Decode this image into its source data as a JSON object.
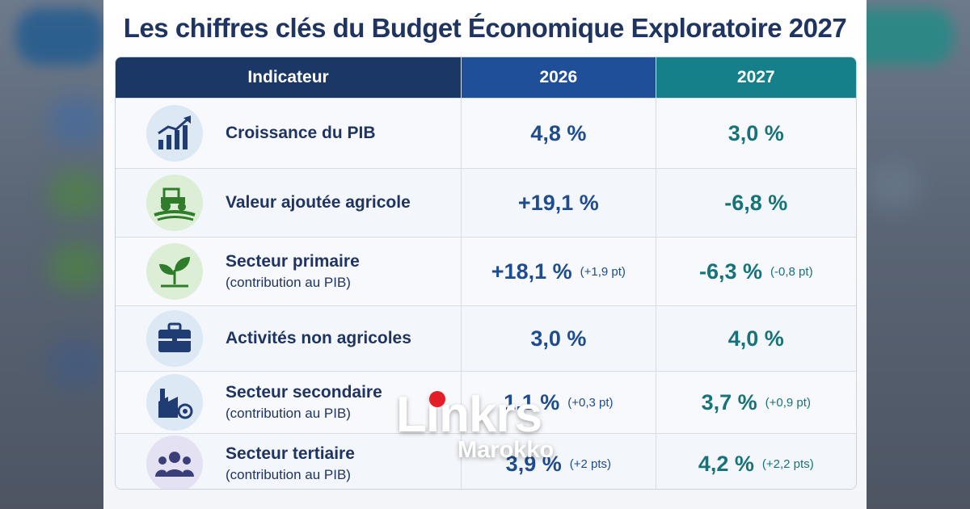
{
  "title": "Les chiffres clés du Budget Économique Exploratoire 2027",
  "headers": {
    "indicator": "Indicateur",
    "y2026": "2026",
    "y2027": "2027"
  },
  "rows": [
    {
      "icon": "growth-chart-icon",
      "label": "Croissance du PIB",
      "sub": "",
      "v2026": "4,8 %",
      "d2026": "",
      "v2027": "3,0 %",
      "d2027": ""
    },
    {
      "icon": "tractor-icon",
      "label": "Valeur ajoutée agricole",
      "sub": "",
      "v2026": "+19,1 %",
      "d2026": "",
      "v2027": "-6,8 %",
      "d2027": ""
    },
    {
      "icon": "sprout-icon",
      "label": "Secteur primaire",
      "sub": "(contribution au PIB)",
      "v2026": "+18,1 %",
      "d2026": "(+1,9 pt)",
      "v2027": "-6,3 %",
      "d2027": "(-0,8 pt)"
    },
    {
      "icon": "briefcase-icon",
      "label": "Activités non agricoles",
      "sub": "",
      "v2026": "3,0 %",
      "d2026": "",
      "v2027": "4,0 %",
      "d2027": ""
    },
    {
      "icon": "factory-icon",
      "label": "Secteur secondaire",
      "sub": "(contribution au PIB)",
      "v2026": "1,1 %",
      "d2026": "(+0,3 pt)",
      "v2027": "3,7 %",
      "d2027": "(+0,9 pt)"
    },
    {
      "icon": "people-icon",
      "label": "Secteur tertiaire",
      "sub": "(contribution au PIB)",
      "v2026": "3,9 %",
      "d2026": "(+2 pts)",
      "v2027": "4,2 %",
      "d2027": "(+2,2 pts)"
    }
  ],
  "logo": {
    "word": "Linkrs",
    "sub": "Marokko"
  },
  "colors": {
    "navy": "#1a3766",
    "blue": "#1f4f99",
    "teal": "#15808a",
    "logo_red": "#e41e26"
  }
}
